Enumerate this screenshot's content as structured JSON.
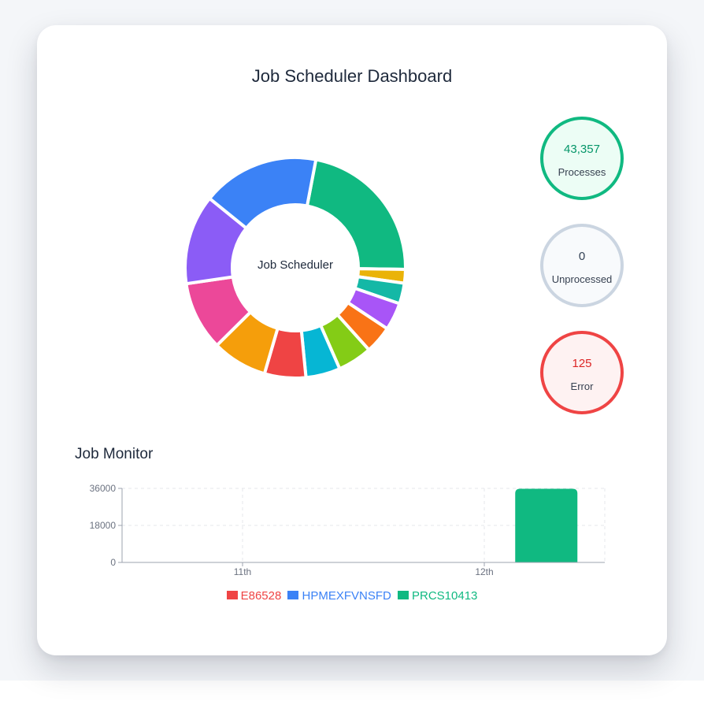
{
  "dashboard": {
    "title": "Job Scheduler Dashboard",
    "donut_center_label": "Job Scheduler"
  },
  "stats": {
    "processes": {
      "value": "43,357",
      "label": "Processes",
      "color": "#10b981"
    },
    "unprocessed": {
      "value": "0",
      "label": "Unprocessed",
      "color": "#cbd5e1"
    },
    "error": {
      "value": "125",
      "label": "Error",
      "color": "#ef4444"
    }
  },
  "job_monitor": {
    "title": "Job Monitor"
  },
  "donut_colors": [
    "#10b981",
    "#eab308",
    "#14b8a6",
    "#a855f7",
    "#f97316",
    "#84cc16",
    "#06b6d4",
    "#ef4444",
    "#f59e0b",
    "#ec4899",
    "#8b5cf6",
    "#3b82f6"
  ],
  "chart_data": [
    {
      "type": "pie",
      "title": "",
      "center_label": "Job Scheduler",
      "values": [
        22,
        2,
        3,
        4,
        4,
        5,
        5,
        6,
        8,
        10,
        13,
        17
      ],
      "colors": [
        "#10b981",
        "#eab308",
        "#14b8a6",
        "#a855f7",
        "#f97316",
        "#84cc16",
        "#06b6d4",
        "#ef4444",
        "#f59e0b",
        "#ec4899",
        "#8b5cf6",
        "#3b82f6"
      ]
    },
    {
      "type": "bar",
      "title": "Job Monitor",
      "categories": [
        "11th",
        "12th"
      ],
      "series": [
        {
          "name": "E86528",
          "values": [
            0,
            0
          ],
          "color": "#ef4444"
        },
        {
          "name": "HPMEXFVNSFD",
          "values": [
            0,
            0
          ],
          "color": "#3b82f6"
        },
        {
          "name": "PRCS10413",
          "values": [
            0,
            35800
          ],
          "color": "#10b981"
        }
      ],
      "yticks": [
        "0",
        "18000",
        "36000"
      ],
      "ylim": [
        0,
        36000
      ],
      "grid": true,
      "legend": "bottom"
    }
  ]
}
